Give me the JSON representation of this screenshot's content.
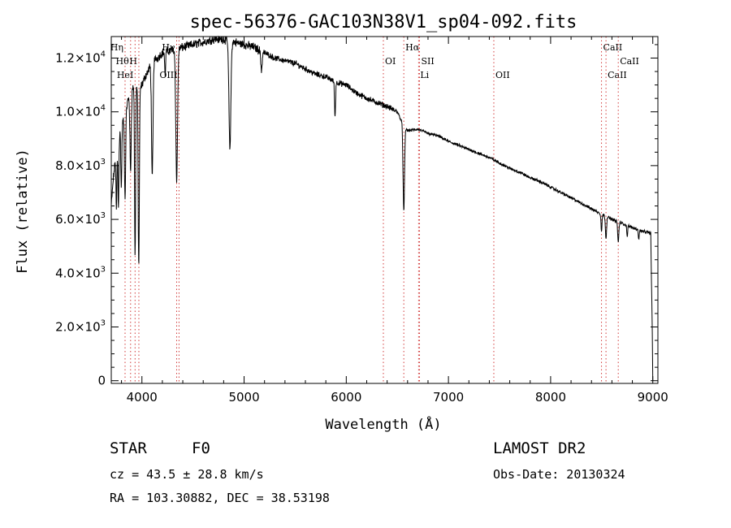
{
  "chart_data": {
    "type": "line",
    "title": "spec-56376-GAC103N38V1_sp04-092.fits",
    "xlabel": "Wavelength (Å)",
    "ylabel": "Flux (relative)",
    "xlim": [
      3700,
      9050
    ],
    "ylim": [
      -100,
      12800
    ],
    "grid": false,
    "x_ticks": [
      4000,
      5000,
      6000,
      7000,
      8000,
      9000
    ],
    "x_tick_labels": [
      "4000",
      "5000",
      "6000",
      "7000",
      "8000",
      "9000"
    ],
    "y_ticks": [
      0,
      2000,
      4000,
      6000,
      8000,
      10000,
      12000
    ],
    "y_tick_labels": [
      {
        "mant": "0",
        "exp": ""
      },
      {
        "mant": "2.0×10",
        "exp": "3"
      },
      {
        "mant": "4.0×10",
        "exp": "3"
      },
      {
        "mant": "6.0×10",
        "exp": "3"
      },
      {
        "mant": "8.0×10",
        "exp": "3"
      },
      {
        "mant": "1.0×10",
        "exp": "4"
      },
      {
        "mant": "1.2×10",
        "exp": "4"
      }
    ],
    "spectrum_anchors": [
      [
        3700,
        6500
      ],
      [
        3720,
        7500
      ],
      [
        3740,
        8200
      ],
      [
        3770,
        8600
      ],
      [
        3790,
        9500
      ],
      [
        3820,
        9700
      ],
      [
        3850,
        10200
      ],
      [
        3880,
        10700
      ],
      [
        3910,
        10900
      ],
      [
        3940,
        11000
      ],
      [
        3970,
        10800
      ],
      [
        4000,
        11000
      ],
      [
        4030,
        11300
      ],
      [
        4060,
        11500
      ],
      [
        4100,
        11900
      ],
      [
        4150,
        12000
      ],
      [
        4200,
        12200
      ],
      [
        4300,
        12300
      ],
      [
        4400,
        12400
      ],
      [
        4500,
        12500
      ],
      [
        4600,
        12600
      ],
      [
        4700,
        12700
      ],
      [
        4800,
        12700
      ],
      [
        4900,
        12600
      ],
      [
        5000,
        12500
      ],
      [
        5100,
        12400
      ],
      [
        5200,
        12200
      ],
      [
        5300,
        12000
      ],
      [
        5400,
        11900
      ],
      [
        5500,
        11800
      ],
      [
        5600,
        11600
      ],
      [
        5700,
        11400
      ],
      [
        5800,
        11300
      ],
      [
        5900,
        11100
      ],
      [
        6000,
        11000
      ],
      [
        6100,
        10700
      ],
      [
        6200,
        10500
      ],
      [
        6300,
        10350
      ],
      [
        6400,
        10200
      ],
      [
        6500,
        10000
      ],
      [
        6560,
        9500
      ],
      [
        6600,
        9300
      ],
      [
        6700,
        9350
      ],
      [
        6800,
        9200
      ],
      [
        6900,
        9100
      ],
      [
        7000,
        8900
      ],
      [
        7100,
        8750
      ],
      [
        7200,
        8600
      ],
      [
        7300,
        8450
      ],
      [
        7400,
        8300
      ],
      [
        7500,
        8100
      ],
      [
        7600,
        7900
      ],
      [
        7700,
        7750
      ],
      [
        7800,
        7550
      ],
      [
        7900,
        7400
      ],
      [
        8000,
        7200
      ],
      [
        8100,
        7000
      ],
      [
        8200,
        6800
      ],
      [
        8300,
        6600
      ],
      [
        8400,
        6400
      ],
      [
        8500,
        6200
      ],
      [
        8600,
        6000
      ],
      [
        8700,
        5850
      ],
      [
        8800,
        5700
      ],
      [
        8900,
        5550
      ],
      [
        8980,
        5500
      ],
      [
        8995,
        1800
      ],
      [
        9000,
        0
      ]
    ],
    "absorption_features": [
      {
        "x": 3750,
        "depth": 2000,
        "width": 6
      },
      {
        "x": 3770,
        "depth": 2200,
        "width": 6
      },
      {
        "x": 3798,
        "depth": 2400,
        "width": 7
      },
      {
        "x": 3835,
        "depth": 3200,
        "width": 8
      },
      {
        "x": 3889,
        "depth": 3000,
        "width": 9
      },
      {
        "x": 3933,
        "depth": 6400,
        "width": 7
      },
      {
        "x": 3969,
        "depth": 6600,
        "width": 8
      },
      {
        "x": 4101,
        "depth": 4400,
        "width": 10
      },
      {
        "x": 4227,
        "depth": 900,
        "width": 6
      },
      {
        "x": 4340,
        "depth": 4900,
        "width": 12
      },
      {
        "x": 4861,
        "depth": 4000,
        "width": 13
      },
      {
        "x": 5170,
        "depth": 700,
        "width": 10
      },
      {
        "x": 5890,
        "depth": 1300,
        "width": 7
      },
      {
        "x": 6563,
        "depth": 3200,
        "width": 10
      },
      {
        "x": 8498,
        "depth": 650,
        "width": 7
      },
      {
        "x": 8542,
        "depth": 800,
        "width": 8
      },
      {
        "x": 8662,
        "depth": 750,
        "width": 8
      },
      {
        "x": 8750,
        "depth": 400,
        "width": 6
      },
      {
        "x": 8863,
        "depth": 350,
        "width": 6
      }
    ],
    "line_markers": [
      {
        "x": 3835,
        "label": "Hη",
        "row": 0,
        "align": "right"
      },
      {
        "x": 3889,
        "label": "Hθ",
        "row": 1,
        "align": "right"
      },
      {
        "x": 3970,
        "label": "H",
        "row": 1,
        "align": "right"
      },
      {
        "x": 3933,
        "label": "HeI",
        "row": 2,
        "align": "right"
      },
      {
        "x": 4340,
        "label": "Hγ",
        "row": 0,
        "align": "right"
      },
      {
        "x": 4363,
        "label": "OIII",
        "row": 2,
        "align": "right"
      },
      {
        "x": 6363,
        "label": "OI",
        "row": 1,
        "align": "left"
      },
      {
        "x": 6563,
        "label": "Hα",
        "row": 0,
        "align": "left"
      },
      {
        "x": 6717,
        "label": "SII",
        "row": 1,
        "align": "left"
      },
      {
        "x": 6708,
        "label": "Li",
        "row": 2,
        "align": "left"
      },
      {
        "x": 7444,
        "label": "OII",
        "row": 2,
        "align": "left"
      },
      {
        "x": 8498,
        "label": "CaII",
        "row": 0,
        "align": "left"
      },
      {
        "x": 8542,
        "label": "CaII",
        "row": 2,
        "align": "left"
      },
      {
        "x": 8662,
        "label": "CaII",
        "row": 1,
        "align": "left"
      }
    ]
  },
  "info": {
    "class_label": "STAR",
    "subclass": "F0",
    "survey": "LAMOST DR2",
    "cz": "cz = 43.5 ± 28.8 km/s",
    "obs_date": "Obs-Date: 20130324",
    "coords": "RA = 103.30882, DEC =  38.53198"
  }
}
